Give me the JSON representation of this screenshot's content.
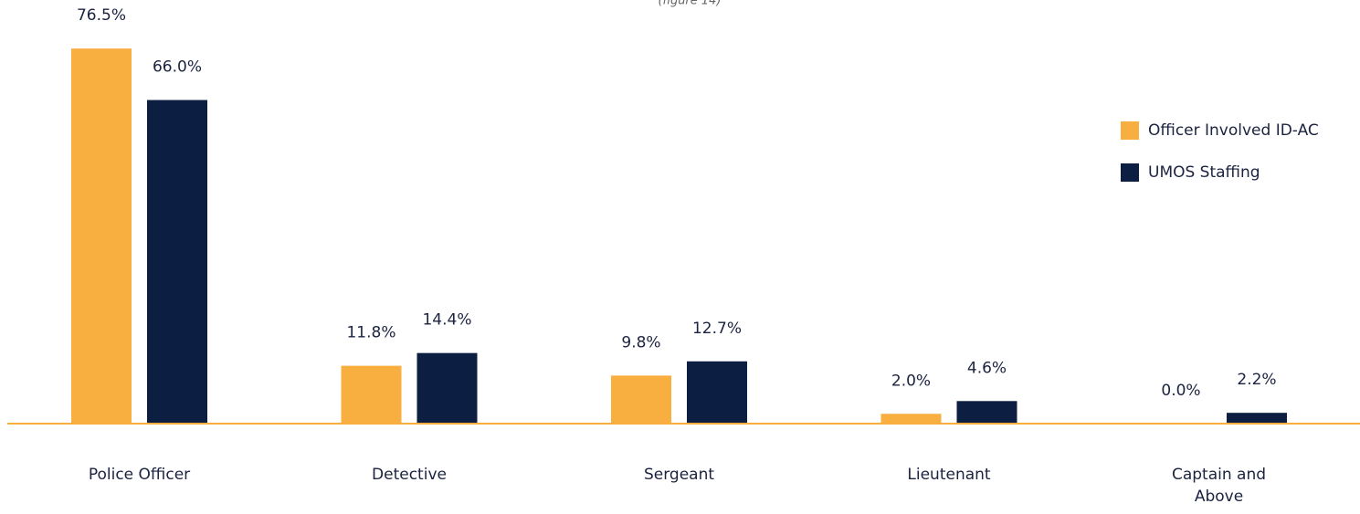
{
  "chart_data": {
    "type": "bar",
    "subtitle": "(figure 14)",
    "categories": [
      "Police Officer",
      "Detective",
      "Sergeant",
      "Lieutenant",
      "Captain and Above"
    ],
    "series": [
      {
        "name": "Officer Involved ID-AC",
        "color": "#f9ae40",
        "values": [
          76.5,
          11.8,
          9.8,
          2.0,
          0.0
        ],
        "value_labels": [
          "76.5%",
          "11.8%",
          "9.8%",
          "2.0%",
          "0.0%"
        ]
      },
      {
        "name": "UMOS Staffing",
        "color": "#0c1e42",
        "values": [
          66.0,
          14.4,
          12.7,
          4.6,
          2.2
        ],
        "value_labels": [
          "66.0%",
          "14.4%",
          "12.7%",
          "4.6%",
          "2.2%"
        ]
      }
    ],
    "ylim": [
      0,
      86.4
    ],
    "legend": "right"
  }
}
